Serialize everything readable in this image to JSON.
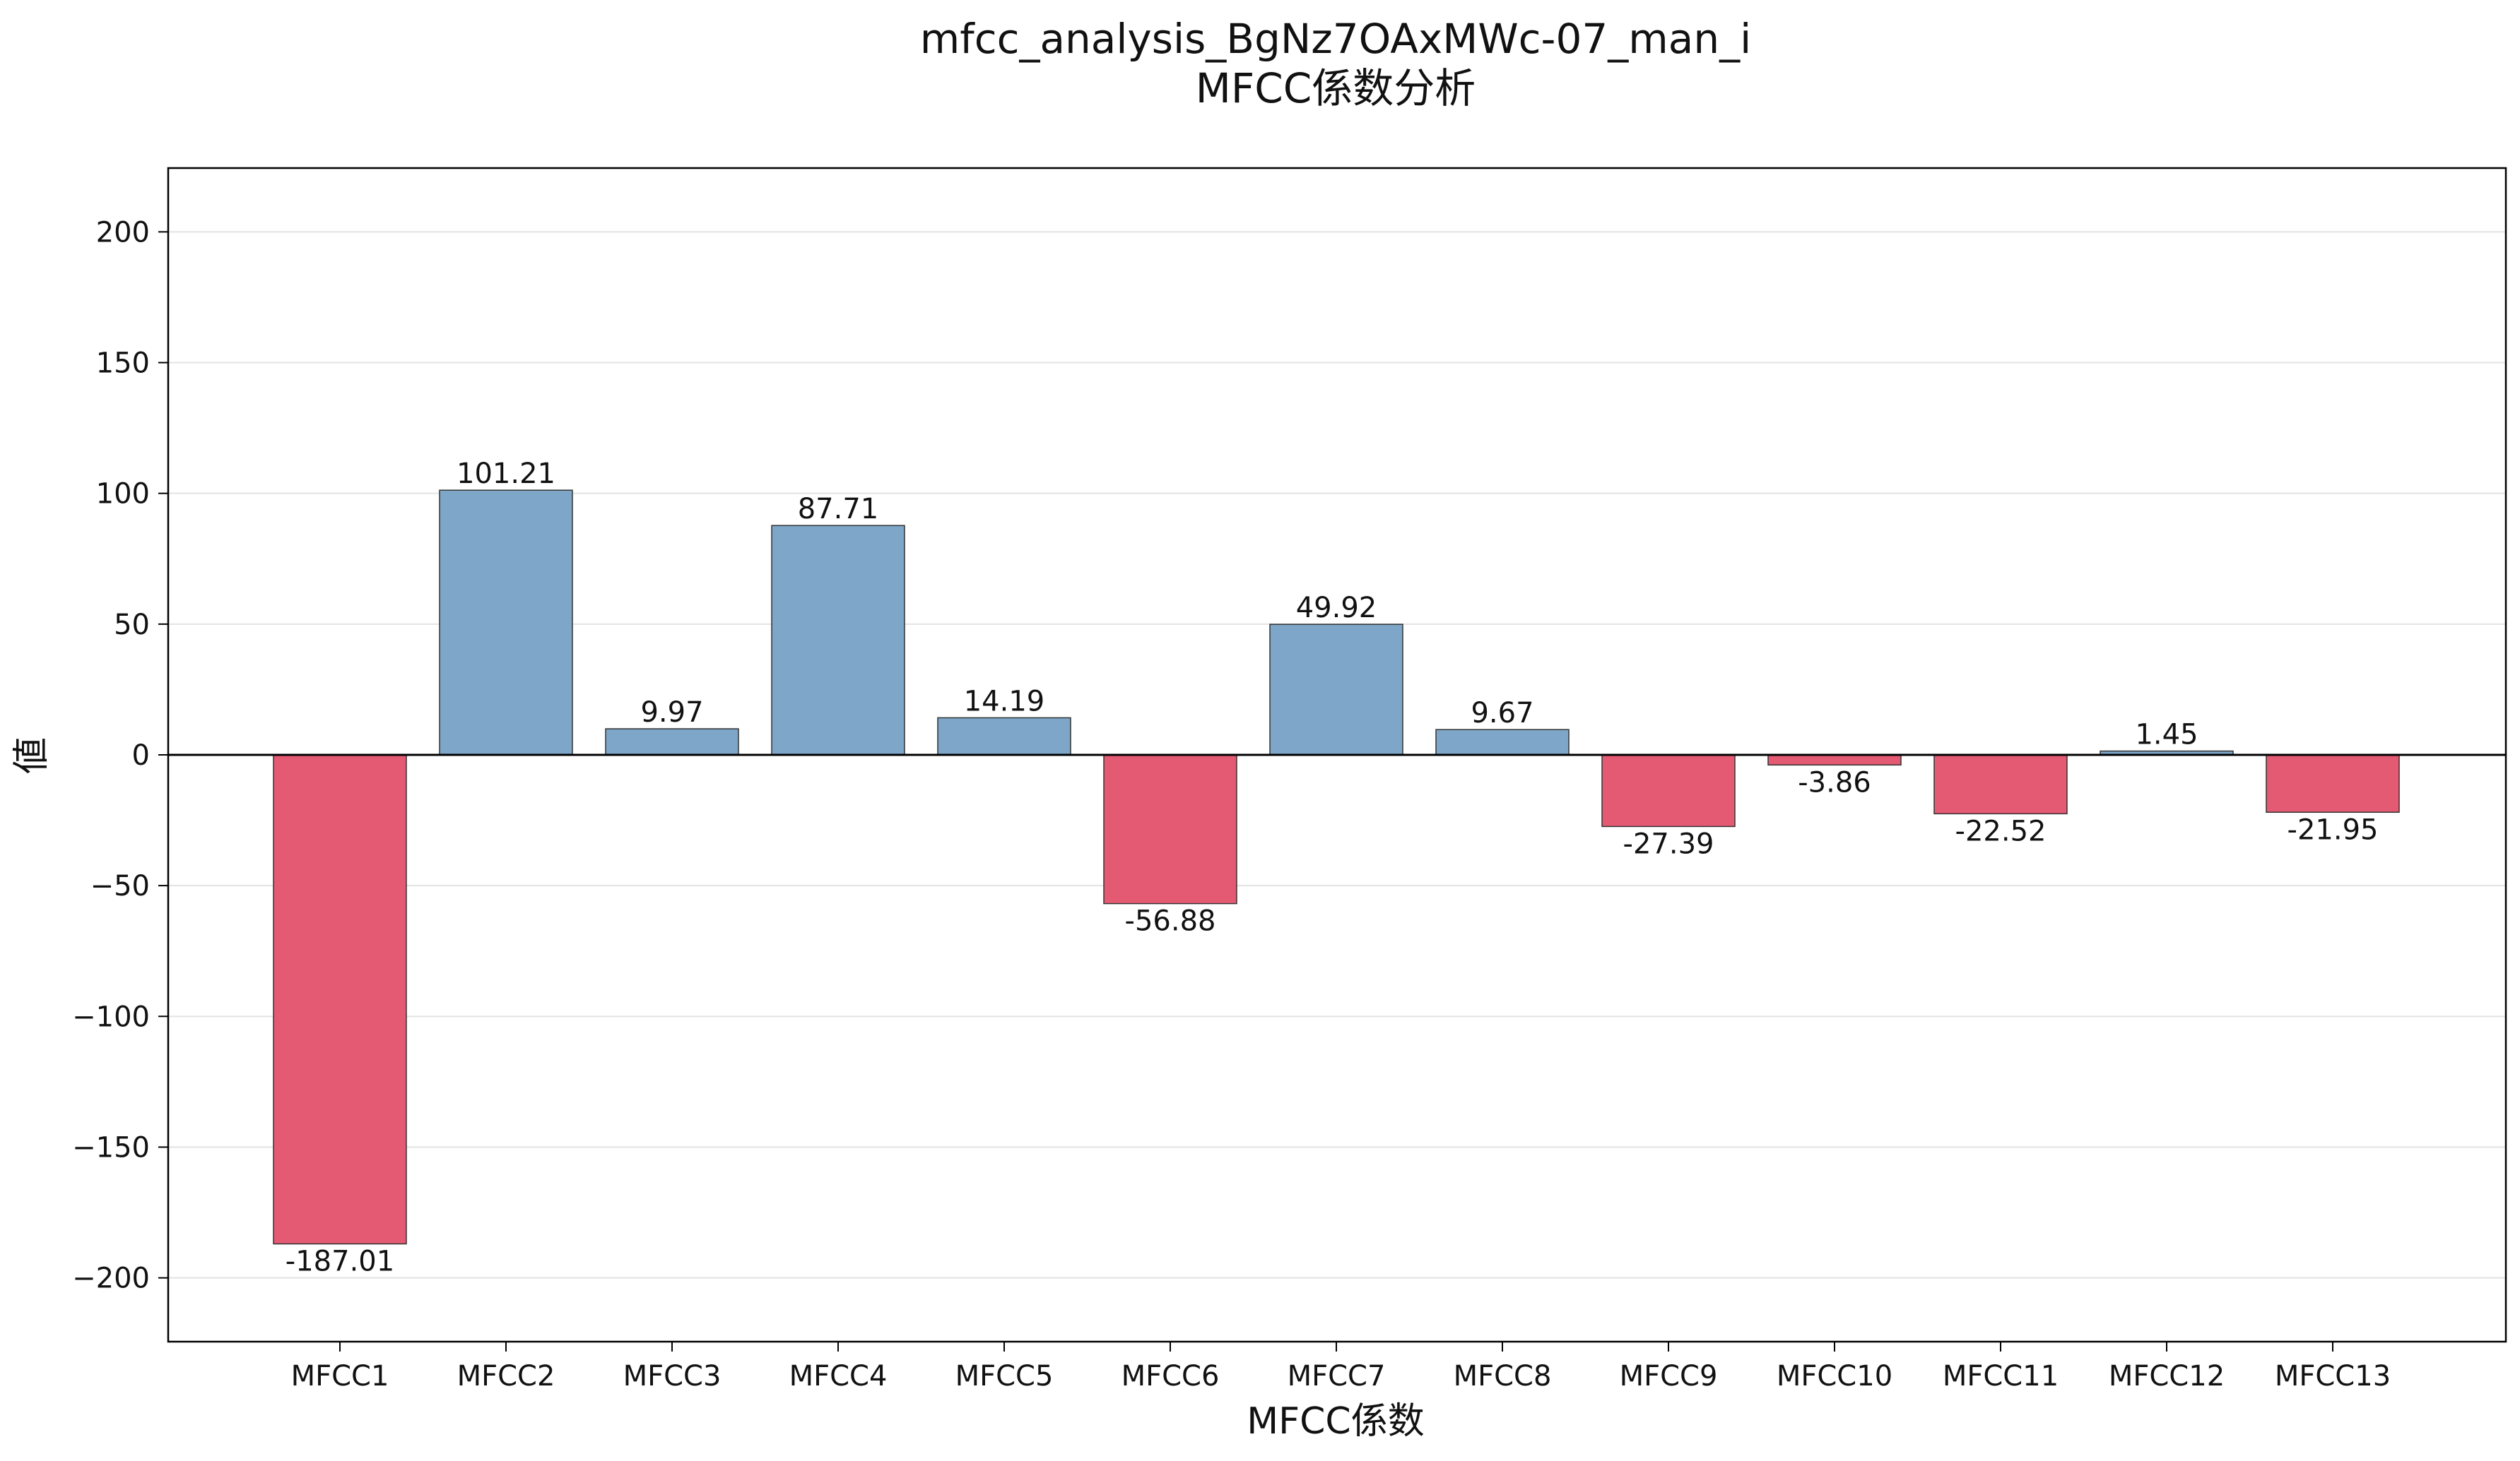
{
  "colors": {
    "positive": "#7ea6c9",
    "negative": "#e55a73",
    "bar_edge": "#333333",
    "grid": "#e3e3e3",
    "axis": "#000000",
    "background": "#ffffff"
  },
  "chart_data": {
    "type": "bar",
    "title": "mfcc_analysis_BgNz7OAxMWc-07_man_i",
    "subtitle": "MFCC係数分析",
    "xlabel": "MFCC係数",
    "ylabel": "値",
    "categories": [
      "MFCC1",
      "MFCC2",
      "MFCC3",
      "MFCC4",
      "MFCC5",
      "MFCC6",
      "MFCC7",
      "MFCC8",
      "MFCC9",
      "MFCC10",
      "MFCC11",
      "MFCC12",
      "MFCC13"
    ],
    "values": [
      -187.01,
      101.21,
      9.97,
      87.71,
      14.19,
      -56.88,
      49.92,
      9.67,
      -27.39,
      -3.86,
      -22.52,
      1.45,
      -21.95
    ],
    "value_labels": [
      "-187.01",
      "101.21",
      "9.97",
      "87.71",
      "14.19",
      "-56.88",
      "49.92",
      "9.67",
      "-27.39",
      "-3.86",
      "-22.52",
      "1.45",
      "-21.95"
    ],
    "ylim": [
      -224.4,
      224.4
    ],
    "yticks": [
      200,
      150,
      100,
      50,
      0,
      -50,
      -100,
      -150,
      -200
    ],
    "ytick_labels": [
      "200",
      "150",
      "100",
      "50",
      "0",
      "−50",
      "−100",
      "−150",
      "−200"
    ],
    "grid": "horizontal",
    "legend": "none"
  }
}
